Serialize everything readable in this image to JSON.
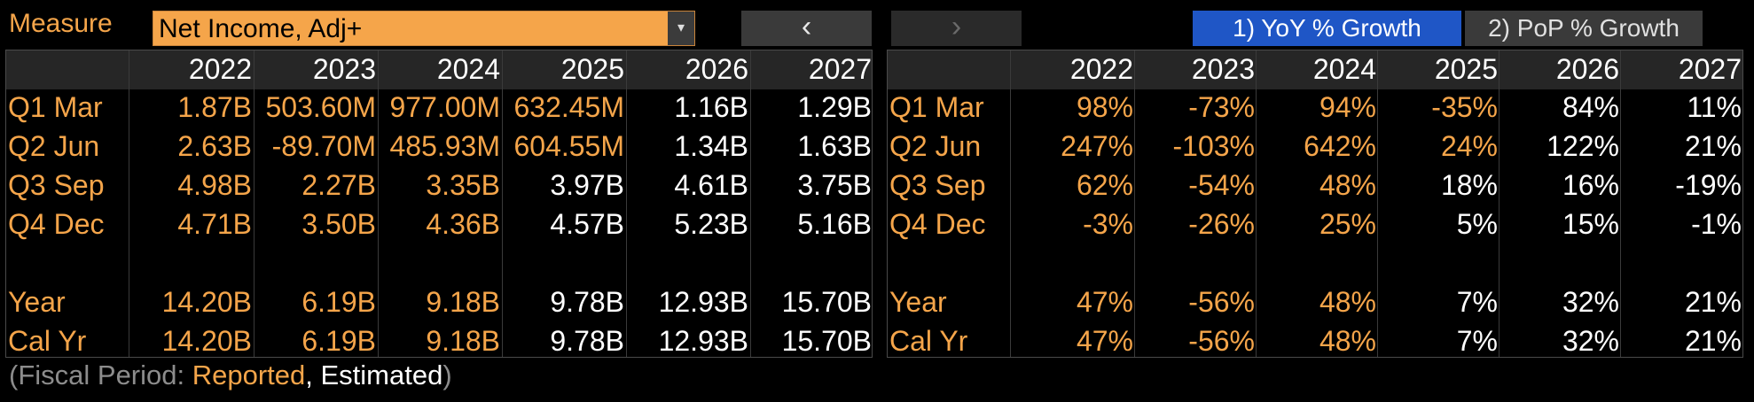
{
  "toolbar": {
    "measure_label": "Measure",
    "measure_value": "Net Income, Adj+",
    "dropdown_arrow": "▾",
    "prev_label": "‹",
    "next_label": "›",
    "yoy_label": "1) YoY % Growth",
    "pop_label": "2) PoP % Growth"
  },
  "years": [
    "2022",
    "2023",
    "2024",
    "2025",
    "2026",
    "2027"
  ],
  "row_labels": [
    "Q1 Mar",
    "Q2 Jun",
    "Q3 Sep",
    "Q4 Dec",
    "Year",
    "Cal Yr"
  ],
  "values": [
    [
      "1.87B",
      "503.60M",
      "977.00M",
      "632.45M",
      "1.16B",
      "1.29B"
    ],
    [
      "2.63B",
      "-89.70M",
      "485.93M",
      "604.55M",
      "1.34B",
      "1.63B"
    ],
    [
      "4.98B",
      "2.27B",
      "3.35B",
      "3.97B",
      "4.61B",
      "3.75B"
    ],
    [
      "4.71B",
      "3.50B",
      "4.36B",
      "4.57B",
      "5.23B",
      "5.16B"
    ],
    [
      "14.20B",
      "6.19B",
      "9.18B",
      "9.78B",
      "12.93B",
      "15.70B"
    ],
    [
      "14.20B",
      "6.19B",
      "9.18B",
      "9.78B",
      "12.93B",
      "15.70B"
    ]
  ],
  "growth": [
    [
      "98%",
      "-73%",
      "94%",
      "-35%",
      "84%",
      "11%"
    ],
    [
      "247%",
      "-103%",
      "642%",
      "24%",
      "122%",
      "21%"
    ],
    [
      "62%",
      "-54%",
      "48%",
      "18%",
      "16%",
      "-19%"
    ],
    [
      "-3%",
      "-26%",
      "25%",
      "5%",
      "15%",
      "-1%"
    ],
    [
      "47%",
      "-56%",
      "48%",
      "7%",
      "32%",
      "21%"
    ],
    [
      "47%",
      "-56%",
      "48%",
      "7%",
      "32%",
      "21%"
    ]
  ],
  "estimate_styles": {
    "values": [
      [
        "r",
        "r",
        "r",
        "r",
        "e",
        "e"
      ],
      [
        "r",
        "r",
        "r",
        "r",
        "e",
        "e"
      ],
      [
        "r",
        "r",
        "r",
        "e",
        "e",
        "e"
      ],
      [
        "r",
        "r",
        "r",
        "e",
        "e",
        "e"
      ],
      [
        "r",
        "r",
        "r",
        "e",
        "e",
        "e"
      ],
      [
        "r",
        "r",
        "r",
        "e",
        "e",
        "e"
      ]
    ],
    "growth": [
      [
        "r",
        "r",
        "r",
        "r",
        "e",
        "e"
      ],
      [
        "r",
        "r",
        "r",
        "r",
        "e",
        "e"
      ],
      [
        "r",
        "r",
        "r",
        "e",
        "e",
        "e"
      ],
      [
        "r",
        "r",
        "r",
        "e",
        "e",
        "e"
      ],
      [
        "r",
        "r",
        "r",
        "e",
        "e",
        "e"
      ],
      [
        "r",
        "r",
        "r",
        "e",
        "e",
        "e"
      ]
    ]
  },
  "footer": {
    "open": "(Fiscal Period: ",
    "reported": "Reported",
    "comma": ", ",
    "estimated": "Estimated",
    "close": ")"
  },
  "colors": {
    "reported": "#f5a54a",
    "estimated": "#ffffff",
    "active_button": "#1f56c6"
  }
}
